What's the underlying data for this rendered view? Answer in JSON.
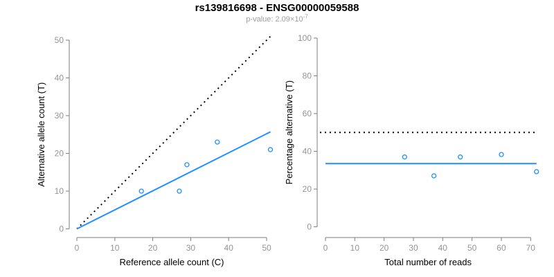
{
  "header": {
    "title": "rs139816698 - ENSG00000059588",
    "subtitle_prefix": "p-value: 2.09×10",
    "subtitle_exponent": "-7"
  },
  "colors": {
    "accent_blue": "#1E90FF",
    "line_black": "#000000",
    "axis_gray": "#7D7D7D",
    "tick_label_gray": "#949494",
    "subtitle_gray": "#9E9E9E",
    "background": "#FFFFFF"
  },
  "chart_data": [
    {
      "name": "allele-counts",
      "type": "scatter",
      "xlabel": "Reference allele count (C)",
      "ylabel": "Alternative allele count (T)",
      "x_ticks": [
        0,
        10,
        20,
        30,
        40,
        50
      ],
      "y_ticks": [
        0,
        10,
        20,
        30,
        40,
        50
      ],
      "xlim": [
        0,
        51
      ],
      "ylim": [
        0,
        51
      ],
      "grid": false,
      "legend": "none",
      "points": [
        [
          17,
          10
        ],
        [
          27,
          10
        ],
        [
          29,
          17
        ],
        [
          37,
          23
        ],
        [
          51,
          21
        ]
      ],
      "lines": [
        {
          "name": "identity-line",
          "style": "dotted",
          "color": "#000000",
          "from": [
            0,
            0
          ],
          "to": [
            51,
            51
          ]
        },
        {
          "name": "fit-line",
          "style": "solid",
          "color": "#1E90FF",
          "from": [
            0,
            0
          ],
          "to": [
            51,
            25.7
          ]
        }
      ]
    },
    {
      "name": "percentage-alternative",
      "type": "scatter",
      "xlabel": "Total number of reads",
      "ylabel": "Percentage alternative (T)",
      "x_ticks": [
        0,
        10,
        20,
        30,
        40,
        50,
        60,
        70
      ],
      "y_ticks": [
        0,
        20,
        40,
        60,
        80,
        100
      ],
      "xlim": [
        0,
        72
      ],
      "ylim": [
        0,
        100
      ],
      "grid": false,
      "legend": "none",
      "points": [
        [
          27,
          37
        ],
        [
          37,
          27
        ],
        [
          46,
          37
        ],
        [
          60,
          38.3
        ],
        [
          72,
          29.2
        ]
      ],
      "lines": [
        {
          "name": "fifty-percent-line",
          "style": "dotted",
          "color": "#000000",
          "from": [
            -1.9,
            50
          ],
          "to": [
            72.2,
            50
          ]
        },
        {
          "name": "mean-percentage-line",
          "style": "solid",
          "color": "#1E90FF",
          "from": [
            0,
            33.5
          ],
          "to": [
            72,
            33.5
          ]
        }
      ]
    }
  ]
}
